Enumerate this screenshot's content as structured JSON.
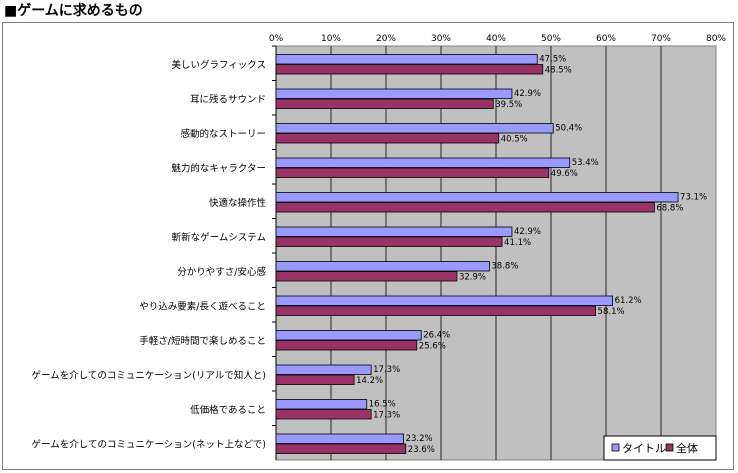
{
  "page": {
    "title": "■ゲームに求めるもの"
  },
  "colors": {
    "plot_background": "#c0c0c0",
    "series_title": "#9999ff",
    "series_all": "#993366",
    "gridline": "#000000"
  },
  "chart_data": {
    "type": "bar",
    "orientation": "horizontal",
    "categories": [
      "美しいグラフィックス",
      "耳に残るサウンド",
      "感動的なストーリー",
      "魅力的なキャラクター",
      "快適な操作性",
      "斬新なゲームシステム",
      "分かりやすさ/安心感",
      "やり込み要素/長く遊べること",
      "手軽さ/短時間で楽しめること",
      "ゲームを介してのコミュニケーション(リアルで知人と)",
      "低価格であること",
      "ゲームを介してのコミュニケーション(ネット上などで)"
    ],
    "series": [
      {
        "name": "タイトル",
        "values": [
          47.5,
          42.9,
          50.4,
          53.4,
          73.1,
          42.9,
          38.8,
          61.2,
          26.4,
          17.3,
          16.5,
          23.2
        ],
        "labels": [
          "47.5%",
          "42.9%",
          "50.4%",
          "53.4%",
          "73.1%",
          "42.9%",
          "38.8%",
          "61.2%",
          "26.4%",
          "17.3%",
          "16.5%",
          "23.2%"
        ]
      },
      {
        "name": "全体",
        "values": [
          48.5,
          39.5,
          40.5,
          49.6,
          68.8,
          41.1,
          32.9,
          58.1,
          25.6,
          14.2,
          17.3,
          23.6
        ],
        "labels": [
          "48.5%",
          "39.5%",
          "40.5%",
          "49.6%",
          "68.8%",
          "41.1%",
          "32.9%",
          "58.1%",
          "25.6%",
          "14.2%",
          "17.3%",
          "23.6%"
        ]
      }
    ],
    "xlim": [
      0,
      80
    ],
    "xticks": [
      "0%",
      "10%",
      "20%",
      "30%",
      "40%",
      "50%",
      "60%",
      "70%",
      "80%"
    ],
    "grid": true,
    "legend_position": "bottom-right"
  }
}
